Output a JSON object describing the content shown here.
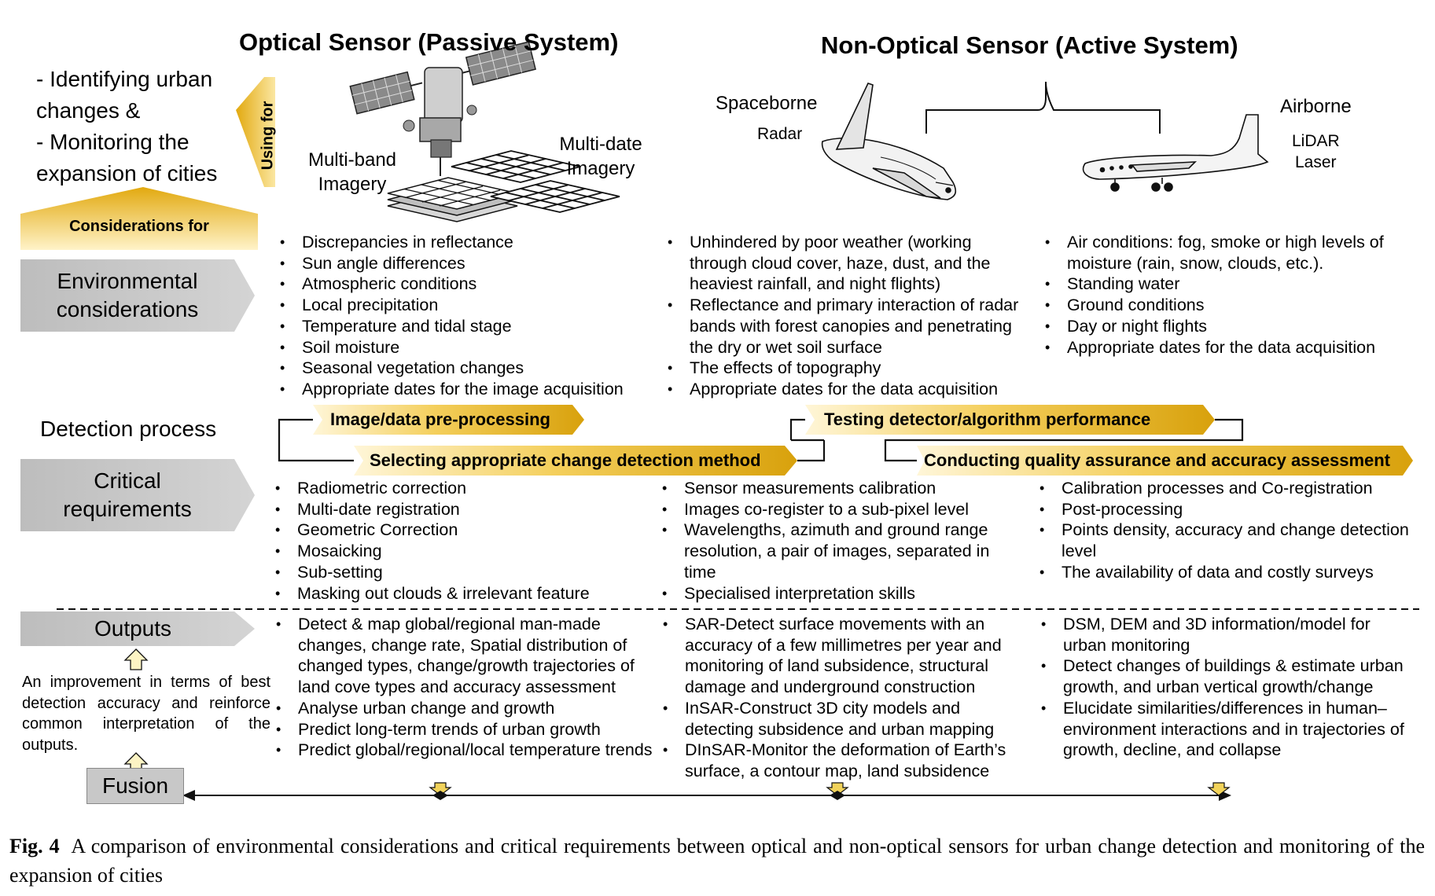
{
  "headers": {
    "optical": "Optical Sensor (Passive System)",
    "non_optical": "Non-Optical Sensor (Active System)"
  },
  "purpose": {
    "line1": "- Identifying urban",
    "line2": "changes    &",
    "line3": "- Monitoring the",
    "line4": "expansion of cities"
  },
  "using_for": "Using for",
  "considerations_for": "Considerations for",
  "imagery": {
    "multiband_line1": "Multi-band",
    "multiband_line2": "Imagery",
    "multidate_line1": "Multi-date",
    "multidate_line2": "Imagery"
  },
  "platforms": {
    "spaceborne": "Spaceborne",
    "radar": "Radar",
    "airborne": "Airborne",
    "lidar": "LiDAR",
    "laser": "Laser"
  },
  "row_labels": {
    "environmental_line1": "Environmental",
    "environmental_line2": "considerations",
    "detection_process": "Detection process",
    "critical_line1": "Critical",
    "critical_line2": "requirements",
    "outputs": "Outputs"
  },
  "environmental": {
    "optical": [
      "Discrepancies in reflectance",
      "Sun angle differences",
      "Atmospheric conditions",
      "Local precipitation",
      "Temperature and tidal stage",
      "Soil moisture",
      "Seasonal vegetation changes",
      "Appropriate dates for the image acquisition"
    ],
    "radar": [
      "Unhindered by poor weather (working through cloud cover, haze, dust, and the heaviest rainfall, and night flights)",
      "Reflectance and primary interaction of radar bands with forest canopies and penetrating the dry or wet soil surface",
      "The effects of topography",
      "Appropriate dates for the data acquisition"
    ],
    "airborne": [
      "Air conditions: fog, smoke or high levels of moisture (rain, snow, clouds, etc.).",
      "Standing water",
      "Ground conditions",
      "Day or night flights",
      "Appropriate dates for the data acquisition"
    ]
  },
  "process_steps": {
    "step1": "Image/data pre-processing",
    "step2": "Selecting appropriate change detection method",
    "step3": "Testing detector/algorithm performance",
    "step4": "Conducting quality assurance and accuracy assessment"
  },
  "critical": {
    "optical": [
      "Radiometric correction",
      "Multi-date registration",
      "Geometric Correction",
      "Mosaicking",
      "Sub-setting",
      "Masking out clouds & irrelevant feature"
    ],
    "radar": [
      "Sensor measurements calibration",
      "Images co-register to a sub-pixel level",
      "Wavelengths, azimuth and ground range resolution, a pair of images, separated in time",
      "Specialised interpretation skills"
    ],
    "airborne": [
      "Calibration processes and Co-registration",
      "Post-processing",
      "Points density, accuracy and change detection level",
      "The availability of data and costly surveys"
    ]
  },
  "outputs": {
    "optical": [
      "Detect & map global/regional man-made changes, change rate, Spatial distribution of changed types, change/growth trajectories of land cove types and accuracy assessment",
      "Analyse urban change and growth",
      "Predict long-term trends of urban growth",
      "Predict global/regional/local temperature trends"
    ],
    "radar": [
      "SAR-Detect surface movements with an accuracy of a few millimetres per year and monitoring of land subsidence, structural damage and underground construction",
      "InSAR-Construct 3D city models and detecting subsidence and urban mapping",
      "DInSAR-Monitor the deformation of Earth’s surface, a contour map, land subsidence"
    ],
    "airborne": [
      "DSM, DEM and 3D  information/model for urban monitoring",
      "Detect changes of buildings & estimate urban growth, and urban vertical growth/change",
      "Elucidate similarities/differences in human–environment interactions and in trajectories of growth, decline, and collapse"
    ]
  },
  "improvement_note": "An improvement in terms of best detection accuracy and reinforce common interpretation of the outputs.",
  "fusion": "Fusion",
  "caption": {
    "label": "Fig. 4",
    "text": "A comparison of environmental considerations and critical requirements between optical and non-optical sensors for urban change detection and monitoring of the expansion of cities"
  },
  "colors": {
    "gold": "#e8b41e",
    "gold_light": "#fbe9a8",
    "gray_box": "#c8c8c8",
    "gray_arrow": "#bdbdbd"
  }
}
